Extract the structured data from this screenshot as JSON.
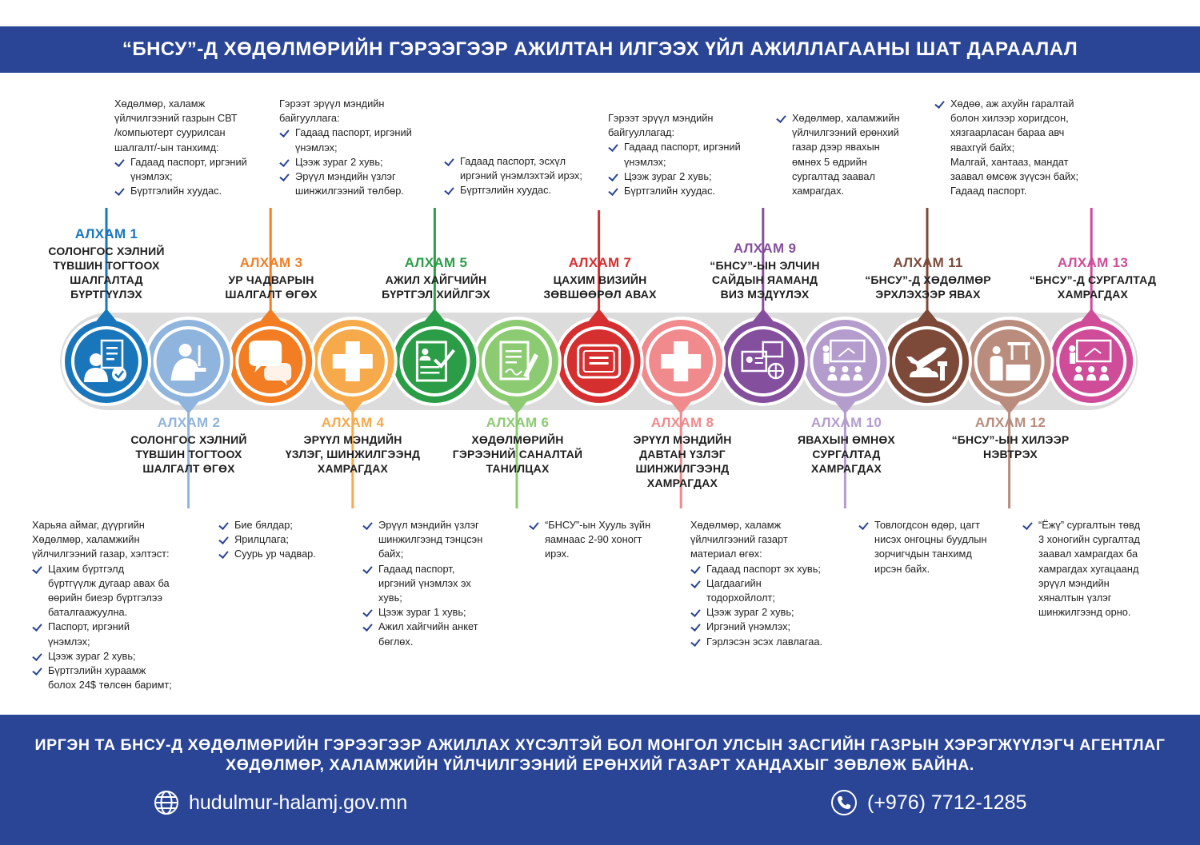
{
  "header": {
    "title": "“БНСУ”-Д ХӨДӨЛМӨРИЙН ГЭРЭЭГЭЭР АЖИЛТАН ИЛГЭЭХ ҮЙЛ АЖИЛЛАГААНЫ ШАТ ДАРААЛАЛ"
  },
  "steps": [
    {
      "label": "АЛХАМ 1",
      "title": "СОЛОНГОС ХЭЛНИЙ\nТҮВШИН ТОГТООХ\nШАЛГАЛТАД\nБҮРТГҮҮЛЭХ",
      "color": "#1a76bb",
      "icon": "test-registration-icon"
    },
    {
      "label": "АЛХАМ 2",
      "title": "СОЛОНГОС ХЭЛНИЙ\nТҮВШИН ТОГТООХ\nШАЛГАЛТ ӨГӨХ",
      "color": "#8fb4dd",
      "icon": "exam-taker-icon"
    },
    {
      "label": "АЛХАМ 3",
      "title": "УР ЧАДВАРЫН\nШАЛГАЛТ ӨГӨХ",
      "color": "#f27d22",
      "icon": "speech-bubbles-icon"
    },
    {
      "label": "АЛХАМ 4",
      "title": "ЭРҮҮЛ МЭНДИЙН\nҮЗЛЭГ, ШИНЖИЛГЭЭНД\nХАМРАГДАХ",
      "color": "#f7aa4c",
      "icon": "medical-cross-icon"
    },
    {
      "label": "АЛХАМ 5",
      "title": "АЖИЛ ХАЙГЧИЙН\nБҮРТГЭЛ ХИЙЛГЭХ",
      "color": "#2c9d47",
      "icon": "job-application-icon"
    },
    {
      "label": "АЛХАМ 6",
      "title": "ХӨДӨЛМӨРИЙН\nГЭРЭЭНИЙ САНАЛТАЙ\nТАНИЛЦАХ",
      "color": "#8ccb72",
      "icon": "contract-signing-icon"
    },
    {
      "label": "АЛХАМ 7",
      "title": "ЦАХИМ ВИЗИЙН\nЗӨВШӨӨРӨЛ АВАХ",
      "color": "#d62f2f",
      "icon": "visa-certificate-icon"
    },
    {
      "label": "АЛХАМ 8",
      "title": "ЭРҮҮЛ МЭНДИЙН\nДАВТАН ҮЗЛЭГ\nШИНЖИЛГЭЭНД\nХАМРАГДАХ",
      "color": "#f08a8c",
      "icon": "medical-cross-icon"
    },
    {
      "label": "АЛХАМ 9",
      "title": "“БНСУ”-ЫН ЭЛЧИН\nСАЙДЫН ЯАМАНД\nВИЗ МЭДҮҮЛЭХ",
      "color": "#844f9d",
      "icon": "visa-application-icon"
    },
    {
      "label": "АЛХАМ 10",
      "title": "ЯВАХЫН ӨМНӨХ\nСУРГАЛТАД\nХАМРАГДАХ",
      "color": "#b49ccd",
      "icon": "classroom-training-icon"
    },
    {
      "label": "АЛХАМ 11",
      "title": "“БНСУ”-Д ХӨДӨЛМӨР\nЭРХЛЭХЭЭР ЯВАХ",
      "color": "#7d4a3a",
      "icon": "airplane-departure-icon"
    },
    {
      "label": "АЛХАМ 12",
      "title": "“БНСУ”-ЫН ХИЛЭЭР\nНЭВТРЭХ",
      "color": "#b98c7e",
      "icon": "border-check-icon"
    },
    {
      "label": "АЛХАМ 13",
      "title": "“БНСУ”-Д СУРГАЛТАД\nХАМРАГДАХ",
      "color": "#cf4c99",
      "icon": "classroom-training-icon"
    }
  ],
  "notes": {
    "n1": [
      {
        "t": "Хөдөлмөр, халамж\nүйлчилгээний газрын СВТ\n/компьютерт суурилсан\nшалгалт/-ын танхимд:"
      },
      {
        "t": "Гадаад паспорт, иргэний\nүнэмлэх;",
        "c": 1
      },
      {
        "t": "Бүртгэлийн хуудас.",
        "c": 1
      }
    ],
    "n2": [
      {
        "t": "Харьяа аймаг, дүүргийн\nХөдөлмөр, халамжийн\nүйлчилгээний газар, хэлтэст:"
      },
      {
        "t": "Цахим бүртгэлд\nбүртгүүлж дугаар авах ба\nөөрийн биеэр бүртгэлээ\nбаталгаажуулна.",
        "c": 1
      },
      {
        "t": "Паспорт, иргэний\nүнэмлэх;",
        "c": 1
      },
      {
        "t": "Цээж зураг 2 хувь;",
        "c": 1
      },
      {
        "t": "Бүртгэлийн хураамж\nболох 24$ төлсөн баримт;",
        "c": 1
      }
    ],
    "n3": [
      {
        "t": "Бие бялдар;",
        "c": 1
      },
      {
        "t": "Ярилцлага;",
        "c": 1
      },
      {
        "t": "Суурь ур чадвар.",
        "c": 1
      }
    ],
    "n4": [
      {
        "t": "Гэрээт эрүүл мэндийн\nбайгууллага:"
      },
      {
        "t": "Гадаад паспорт, иргэний\nүнэмлэх;",
        "c": 1
      },
      {
        "t": "Цээж зураг 2 хувь;",
        "c": 1
      },
      {
        "t": "Эрүүл мэндийн үзлэг\nшинжилгээний төлбөр.",
        "c": 1
      }
    ],
    "n5": [
      {
        "t": "Эрүүл мэндийн үзлэг\nшинжилгээнд тэнцсэн\nбайх;",
        "c": 1
      },
      {
        "t": "Гадаад паспорт,\nиргэний үнэмлэх эх\nхувь;",
        "c": 1
      },
      {
        "t": "Цээж зураг 1 хувь;",
        "c": 1
      },
      {
        "t": "Ажил хайгчийн анкет\nбөглөх.",
        "c": 1
      }
    ],
    "n6": [
      {
        "t": "Гадаад паспорт, эсхүл\nиргэний үнэмлэхтэй ирэх;",
        "c": 1
      },
      {
        "t": "Бүртгэлийн хуудас.",
        "c": 1
      }
    ],
    "n7": [
      {
        "t": "“БНСУ”-ын Хууль зүйн\nяамнаас 2-90 хоногт\nирэх.",
        "c": 1
      }
    ],
    "n8": [
      {
        "t": "Гэрээт эрүүл мэндийн\nбайгууллагад:"
      },
      {
        "t": "Гадаад паспорт, иргэний\nүнэмлэх;",
        "c": 1
      },
      {
        "t": "Цээж зураг 2 хувь;",
        "c": 1
      },
      {
        "t": "Бүртгэлийн хуудас.",
        "c": 1
      }
    ],
    "n9": [
      {
        "t": "Хөдөлмөр, халамж\nүйлчилгээний газарт\nматериал өгөх:"
      },
      {
        "t": "Гадаад паспорт эх хувь;",
        "c": 1
      },
      {
        "t": "Цагдаагийн\nтодорхойлолт;",
        "c": 1
      },
      {
        "t": "Цээж зураг 2 хувь;",
        "c": 1
      },
      {
        "t": "Иргэний үнэмлэх;",
        "c": 1
      },
      {
        "t": "Гэрлэсэн эсэх лавлагаа.",
        "c": 1
      }
    ],
    "n10": [
      {
        "t": "Хөдөлмөр, халамжийн\nүйлчилгээний ерөнхий\nгазар дээр явахын\nөмнөх 5 өдрийн\nсургалтад заавал\nхамрагдах.",
        "c": 1
      }
    ],
    "n11": [
      {
        "t": "Товлогдсон өдөр, цагт\nнисэх онгоцны буудлын\nзорчигчдын танхимд\nирсэн байх.",
        "c": 1
      }
    ],
    "n12": [
      {
        "t": "Хөдөө, аж ахуйн гаралтай\nболон хилээр хоригдсон,\nхязгаарласан бараа авч\nявахгүй байх;",
        "c": 1
      },
      {
        "t": "Малгай, хантааз, мандат\nзаавал өмсөж зүүсэн байх;",
        "i": 1
      },
      {
        "t": "Гадаад паспорт.",
        "i": 1
      }
    ],
    "n13": [
      {
        "t": "“Ёжү” сургалтын төвд\n3 хоногийн сургалтад\nзаавал хамрагдах ба\nхамрагдах хугацаанд\nэрүүл мэндийн\nхяналтын үзлэг\nшинжилгээнд орно.",
        "c": 1
      }
    ]
  },
  "footer": {
    "line1": "ИРГЭН ТА БНСУ-Д ХӨДӨЛМӨРИЙН ГЭРЭЭГЭЭР АЖИЛЛАХ ХҮСЭЛТЭЙ БОЛ МОНГОЛ УЛСЫН ЗАСГИЙН ГАЗРЫН ХЭРЭГЖҮҮЛЭГЧ АГЕНТЛАГ",
    "line2": "ХӨДӨЛМӨР, ХАЛАМЖИЙН ҮЙЛЧИЛГЭЭНИЙ ЕРӨНХИЙ ГАЗАРТ ХАНДАХЫГ ЗӨВЛӨЖ БАЙНА.",
    "website": "hudulmur-halamj.gov.mn",
    "website_icon": "globe-icon",
    "phone": "(+976) 7712-1285",
    "phone_icon": "phone-icon"
  }
}
